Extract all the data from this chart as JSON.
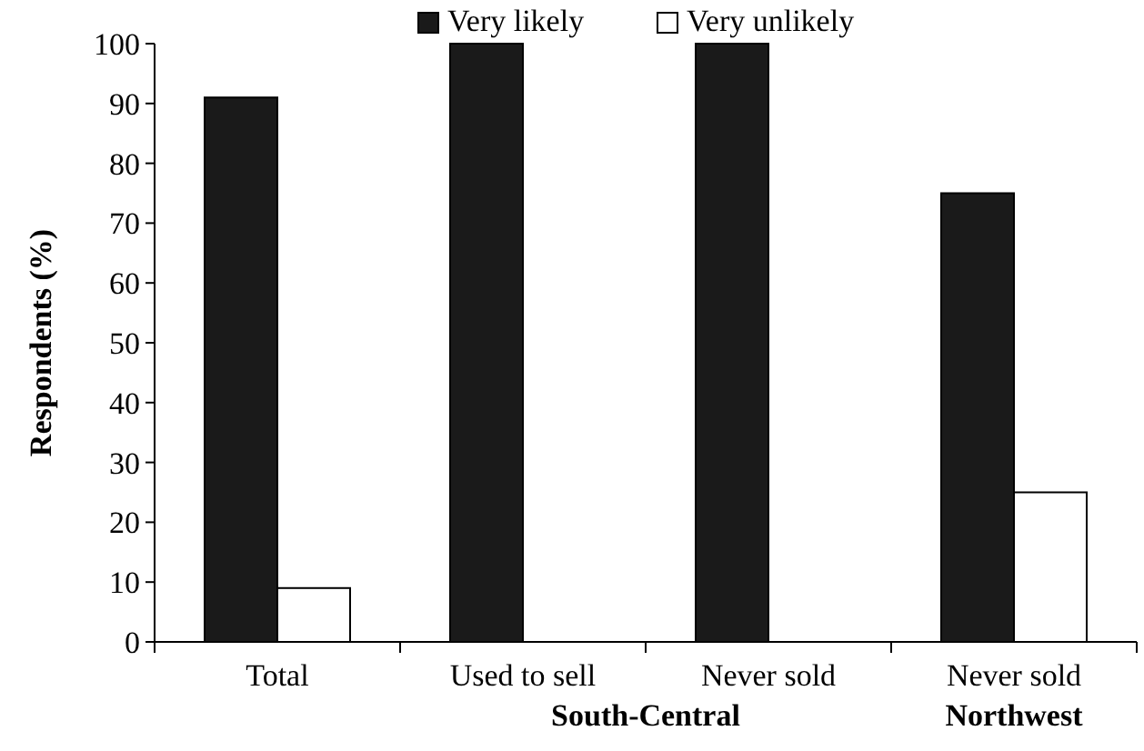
{
  "chart_data": {
    "type": "bar",
    "ylabel": "Respondents (%)",
    "categories": [
      "Total",
      "Used to sell",
      "Never sold",
      "Never sold"
    ],
    "series": [
      {
        "name": "Very likely",
        "color": "#1a1a1a",
        "values": [
          91,
          100,
          100,
          75
        ]
      },
      {
        "name": "Very unlikely",
        "color": "#ffffff",
        "values": [
          9,
          0,
          0,
          25
        ]
      }
    ],
    "ylim": [
      0,
      100
    ],
    "yticks": [
      0,
      10,
      20,
      30,
      40,
      50,
      60,
      70,
      80,
      90,
      100
    ],
    "legend": "top",
    "grid": false,
    "annotations": [
      "South-Central",
      "Northwest"
    ]
  }
}
